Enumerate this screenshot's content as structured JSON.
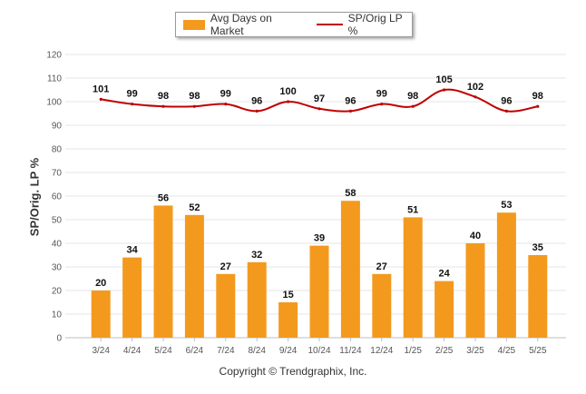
{
  "legend": {
    "bar_label": "Avg Days on Market",
    "line_label": "SP/Orig LP %"
  },
  "footer": {
    "copyright": "Copyright © Trendgraphix, Inc."
  },
  "chart_data": {
    "type": "bar",
    "ylabel": "SP/Orig. LP %",
    "ylim": [
      0,
      120
    ],
    "yticks": [
      0,
      10,
      20,
      30,
      40,
      50,
      60,
      70,
      80,
      90,
      100,
      110,
      120
    ],
    "grid": true,
    "legend_position": "top-center",
    "categories": [
      "3/24",
      "4/24",
      "5/24",
      "6/24",
      "7/24",
      "8/24",
      "9/24",
      "10/24",
      "11/24",
      "12/24",
      "1/25",
      "2/25",
      "3/25",
      "4/25",
      "5/25"
    ],
    "series": [
      {
        "name": "Avg Days on Market",
        "type": "bar",
        "color": "#f39a1e",
        "values": [
          20,
          34,
          56,
          52,
          27,
          32,
          15,
          39,
          58,
          27,
          51,
          24,
          40,
          53,
          35
        ]
      },
      {
        "name": "SP/Orig LP %",
        "type": "line",
        "color": "#c00000",
        "values": [
          101,
          99,
          98,
          98,
          99,
          96,
          100,
          97,
          96,
          99,
          98,
          105,
          102,
          96,
          98
        ]
      }
    ]
  }
}
